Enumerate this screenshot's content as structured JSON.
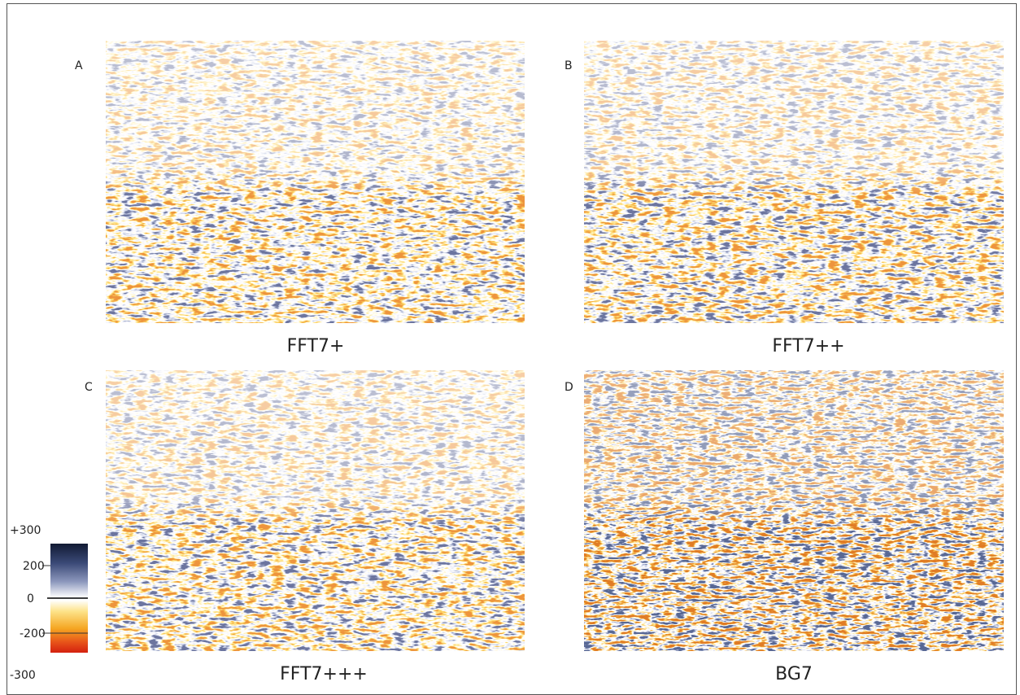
{
  "panels": [
    {
      "letter": "A",
      "caption": "FFT7+"
    },
    {
      "letter": "B",
      "caption": "FFT7++"
    },
    {
      "letter": "C",
      "caption": "FFT7+++"
    },
    {
      "letter": "D",
      "caption": "BG7"
    }
  ],
  "colorbar": {
    "labels": [
      "+300",
      "200",
      "0",
      "-200",
      "-300"
    ]
  }
}
